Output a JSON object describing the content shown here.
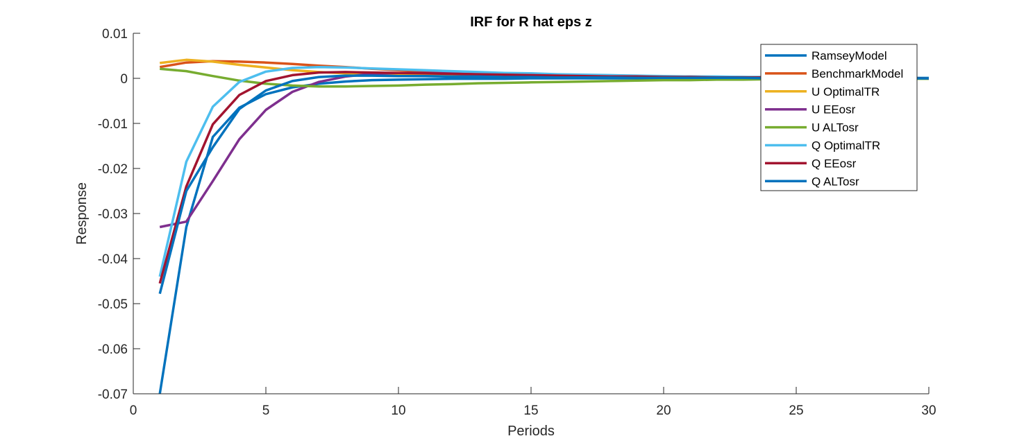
{
  "chart_data": {
    "type": "line",
    "title": "IRF for R hat eps z",
    "xlabel": "Periods",
    "ylabel": "Response",
    "xlim": [
      0,
      30
    ],
    "ylim": [
      -0.07,
      0.01
    ],
    "xticks": [
      "0",
      "5",
      "10",
      "15",
      "20",
      "25",
      "30"
    ],
    "yticks": [
      "0.01",
      "0",
      "-0.01",
      "-0.02",
      "-0.03",
      "-0.04",
      "-0.05",
      "-0.06",
      "-0.07"
    ],
    "grid": false,
    "legend_position": "top-right",
    "x": [
      1,
      2,
      3,
      4,
      5,
      6,
      7,
      8,
      9,
      10,
      11,
      12,
      13,
      14,
      15,
      16,
      17,
      18,
      19,
      20,
      21,
      22,
      23,
      24,
      25,
      26,
      27,
      28,
      29,
      30
    ],
    "series": [
      {
        "name": "RamseyModel",
        "color": "#0072BD",
        "values": [
          -0.07,
          -0.033,
          -0.013,
          -0.0065,
          -0.0035,
          -0.002,
          -0.0012,
          -0.0007,
          -0.0004,
          -0.0003,
          -0.0002,
          -0.0001,
          -0.0001,
          -0.0001,
          0.0,
          0.0,
          0.0,
          0.0,
          0.0,
          0.0,
          0.0,
          0.0,
          0.0,
          0.0,
          0.0,
          0.0,
          0.0,
          0.0,
          0.0,
          0.0
        ]
      },
      {
        "name": "BenchmarkModel",
        "color": "#D95319",
        "values": [
          0.0025,
          0.0035,
          0.0038,
          0.0037,
          0.0035,
          0.0032,
          0.0028,
          0.0025,
          0.0021,
          0.0018,
          0.0016,
          0.0014,
          0.0012,
          0.001,
          0.0009,
          0.0008,
          0.0007,
          0.0006,
          0.0005,
          0.0004,
          0.0004,
          0.0003,
          0.0003,
          0.0003,
          0.0002,
          0.0002,
          0.0002,
          0.0001,
          0.0001,
          0.0001
        ]
      },
      {
        "name": "U OptimalTR",
        "color": "#EDB120",
        "values": [
          0.0034,
          0.0041,
          0.0037,
          0.003,
          0.0024,
          0.0018,
          0.0014,
          0.0011,
          0.001,
          0.0009,
          0.0008,
          0.0007,
          0.0007,
          0.0006,
          0.0005,
          0.0005,
          0.0004,
          0.0004,
          0.0003,
          0.0003,
          0.0003,
          0.0002,
          0.0002,
          0.0002,
          0.0001,
          0.0001,
          0.0001,
          0.0001,
          0.0001,
          0.0001
        ]
      },
      {
        "name": "U EEosr",
        "color": "#7E2F8E",
        "values": [
          -0.033,
          -0.0318,
          -0.0228,
          -0.0135,
          -0.007,
          -0.003,
          -0.0008,
          0.0004,
          0.001,
          0.0012,
          0.0012,
          0.0011,
          0.001,
          0.0009,
          0.0008,
          0.0007,
          0.0006,
          0.0005,
          0.0005,
          0.0004,
          0.0004,
          0.0003,
          0.0003,
          0.0002,
          0.0002,
          0.0002,
          0.0002,
          0.0001,
          0.0001,
          0.0001
        ]
      },
      {
        "name": "U ALTosr",
        "color": "#77AC30",
        "values": [
          0.0021,
          0.0016,
          0.0005,
          -0.0005,
          -0.0012,
          -0.0016,
          -0.0018,
          -0.0018,
          -0.0017,
          -0.0016,
          -0.0014,
          -0.0013,
          -0.0011,
          -0.001,
          -0.0009,
          -0.0008,
          -0.0007,
          -0.0006,
          -0.0005,
          -0.0004,
          -0.0004,
          -0.0003,
          -0.0003,
          -0.0002,
          -0.0002,
          -0.0002,
          -0.0001,
          -0.0001,
          -0.0001,
          -0.0001
        ]
      },
      {
        "name": "Q OptimalTR",
        "color": "#4DBEEE",
        "values": [
          -0.044,
          -0.0185,
          -0.0063,
          -0.0008,
          0.0015,
          0.0023,
          0.0025,
          0.0024,
          0.0022,
          0.002,
          0.0018,
          0.0016,
          0.0014,
          0.0012,
          0.0011,
          0.0009,
          0.0008,
          0.0007,
          0.0006,
          0.0005,
          0.0004,
          0.0004,
          0.0003,
          0.0003,
          0.0002,
          0.0002,
          0.0002,
          0.0001,
          0.0001,
          0.0001
        ]
      },
      {
        "name": "Q EEosr",
        "color": "#A2142F",
        "values": [
          -0.0455,
          -0.024,
          -0.0102,
          -0.0037,
          -0.0006,
          0.0007,
          0.0013,
          0.0014,
          0.0013,
          0.0012,
          0.0011,
          0.001,
          0.0009,
          0.0008,
          0.0007,
          0.0006,
          0.0005,
          0.0004,
          0.0004,
          0.0003,
          0.0003,
          0.0002,
          0.0002,
          0.0002,
          0.0001,
          0.0001,
          0.0001,
          0.0001,
          0.0001,
          0.0
        ]
      },
      {
        "name": "Q ALTosr",
        "color": "#0072BD",
        "values": [
          -0.0478,
          -0.025,
          -0.0153,
          -0.0068,
          -0.0027,
          -0.0006,
          0.0003,
          0.0006,
          0.0006,
          0.0005,
          0.0005,
          0.0004,
          0.0004,
          0.0003,
          0.0003,
          0.0002,
          0.0002,
          0.0002,
          0.0001,
          0.0001,
          0.0001,
          0.0001,
          0.0001,
          0.0,
          0.0,
          0.0,
          0.0,
          0.0,
          0.0,
          0.0
        ]
      }
    ]
  }
}
